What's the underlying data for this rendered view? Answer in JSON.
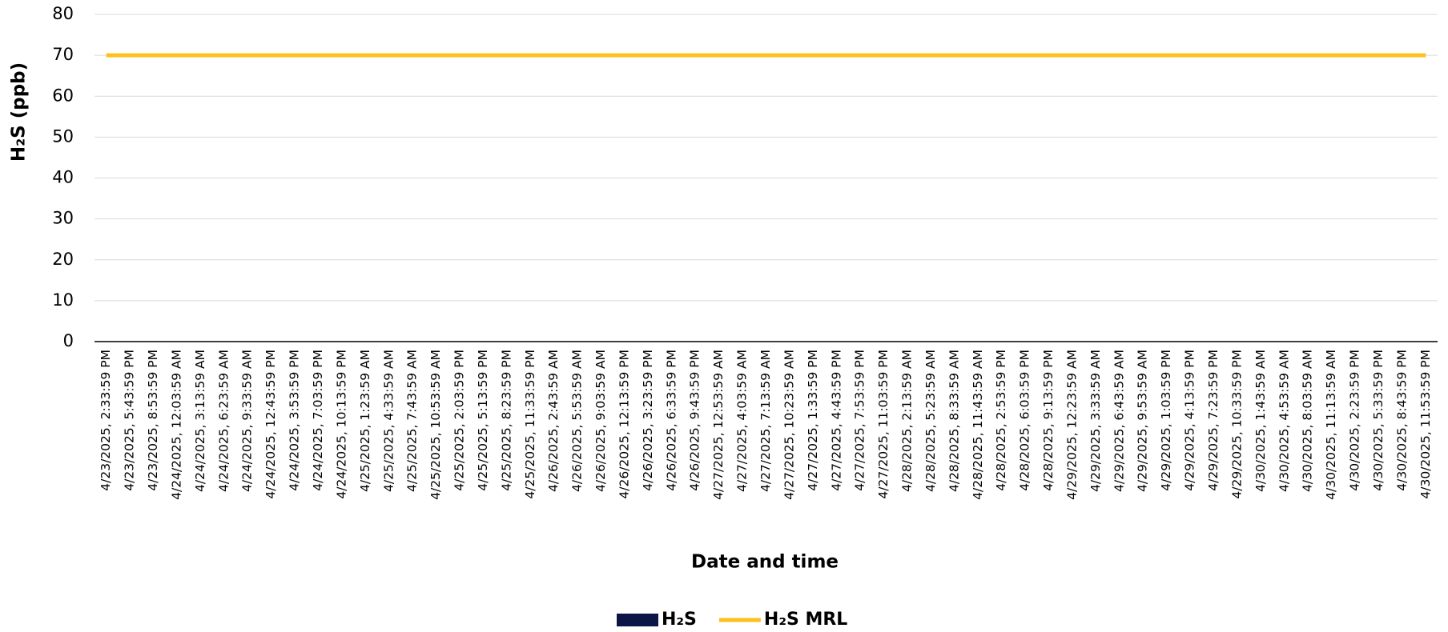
{
  "chart_data": {
    "type": "bar",
    "x_label": "Date and time",
    "y_label": "H₂S (ppb)",
    "categories": [
      "4/23/2025, 2:33:59 PM",
      "4/23/2025, 5:43:59 PM",
      "4/23/2025, 8:53:59 PM",
      "4/24/2025, 12:03:59 AM",
      "4/24/2025, 3:13:59 AM",
      "4/24/2025, 6:23:59 AM",
      "4/24/2025, 9:33:59 AM",
      "4/24/2025, 12:43:59 PM",
      "4/24/2025, 3:53:59 PM",
      "4/24/2025, 7:03:59 PM",
      "4/24/2025, 10:13:59 PM",
      "4/25/2025, 1:23:59 AM",
      "4/25/2025, 4:33:59 AM",
      "4/25/2025, 7:43:59 AM",
      "4/25/2025, 10:53:59 AM",
      "4/25/2025, 2:03:59 PM",
      "4/25/2025, 5:13:59 PM",
      "4/25/2025, 8:23:59 PM",
      "4/25/2025, 11:33:59 PM",
      "4/26/2025, 2:43:59 AM",
      "4/26/2025, 5:53:59 AM",
      "4/26/2025, 9:03:59 AM",
      "4/26/2025, 12:13:59 PM",
      "4/26/2025, 3:23:59 PM",
      "4/26/2025, 6:33:59 PM",
      "4/26/2025, 9:43:59 PM",
      "4/27/2025, 12:53:59 AM",
      "4/27/2025, 4:03:59 AM",
      "4/27/2025, 7:13:59 AM",
      "4/27/2025, 10:23:59 AM",
      "4/27/2025, 1:33:59 PM",
      "4/27/2025, 4:43:59 PM",
      "4/27/2025, 7:53:59 PM",
      "4/27/2025, 11:03:59 PM",
      "4/28/2025, 2:13:59 AM",
      "4/28/2025, 5:23:59 AM",
      "4/28/2025, 8:33:59 AM",
      "4/28/2025, 11:43:59 AM",
      "4/28/2025, 2:53:59 PM",
      "4/28/2025, 6:03:59 PM",
      "4/28/2025, 9:13:59 PM",
      "4/29/2025, 12:23:59 AM",
      "4/29/2025, 3:33:59 AM",
      "4/29/2025, 6:43:59 AM",
      "4/29/2025, 9:53:59 AM",
      "4/29/2025, 1:03:59 PM",
      "4/29/2025, 4:13:59 PM",
      "4/29/2025, 7:23:59 PM",
      "4/29/2025, 10:33:59 PM",
      "4/30/2025, 1:43:59 AM",
      "4/30/2025, 4:53:59 AM",
      "4/30/2025, 8:03:59 AM",
      "4/30/2025, 11:13:59 AM",
      "4/30/2025, 2:23:59 PM",
      "4/30/2025, 5:33:59 PM",
      "4/30/2025, 8:43:59 PM",
      "4/30/2025, 11:53:59 PM"
    ],
    "series": [
      {
        "name": "H₂S",
        "type": "bar",
        "color": "#0d1546",
        "values": [
          0,
          0,
          0,
          0,
          0,
          0,
          0,
          0,
          0,
          0,
          0,
          0,
          0,
          0,
          0,
          0,
          0,
          0,
          0,
          0,
          0,
          0,
          0,
          0,
          0,
          0,
          0,
          0,
          0,
          0,
          0,
          0,
          0,
          0,
          0,
          0,
          0,
          0,
          0,
          0,
          0,
          0,
          0,
          0,
          0,
          0,
          0,
          0,
          0,
          0,
          0,
          0,
          0,
          0,
          0,
          0,
          0
        ]
      },
      {
        "name": "H₂S MRL",
        "type": "line",
        "color": "#fdc11e",
        "values": [
          70,
          70,
          70,
          70,
          70,
          70,
          70,
          70,
          70,
          70,
          70,
          70,
          70,
          70,
          70,
          70,
          70,
          70,
          70,
          70,
          70,
          70,
          70,
          70,
          70,
          70,
          70,
          70,
          70,
          70,
          70,
          70,
          70,
          70,
          70,
          70,
          70,
          70,
          70,
          70,
          70,
          70,
          70,
          70,
          70,
          70,
          70,
          70,
          70,
          70,
          70,
          70,
          70,
          70,
          70,
          70,
          70
        ]
      }
    ],
    "ylim": [
      0,
      80
    ],
    "yticks": [
      0,
      10,
      20,
      30,
      40,
      50,
      60,
      70,
      80
    ],
    "grid": true,
    "legend": "bottom"
  }
}
